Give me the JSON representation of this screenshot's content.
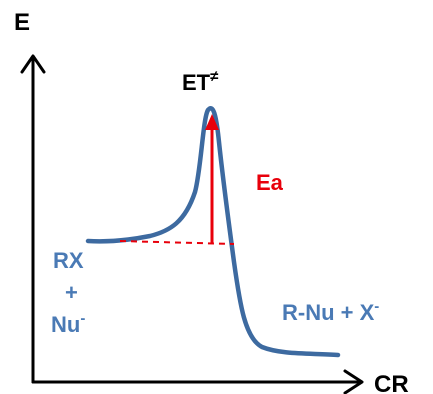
{
  "axes": {
    "y_label": "E",
    "x_label": "CR"
  },
  "transition_state": {
    "label": "ET",
    "symbol": "≠"
  },
  "activation_energy": {
    "label": "Ea"
  },
  "reactants": {
    "line1": "RX",
    "line2": "+",
    "line3_base": "Nu",
    "line3_sup": "-"
  },
  "products": {
    "base1": "R-Nu + X",
    "sup1": "-"
  },
  "colors": {
    "curve": "#3d6aa0",
    "activation": "#e8000b",
    "species_text": "#4a7ab5",
    "axes": "#000000"
  }
}
